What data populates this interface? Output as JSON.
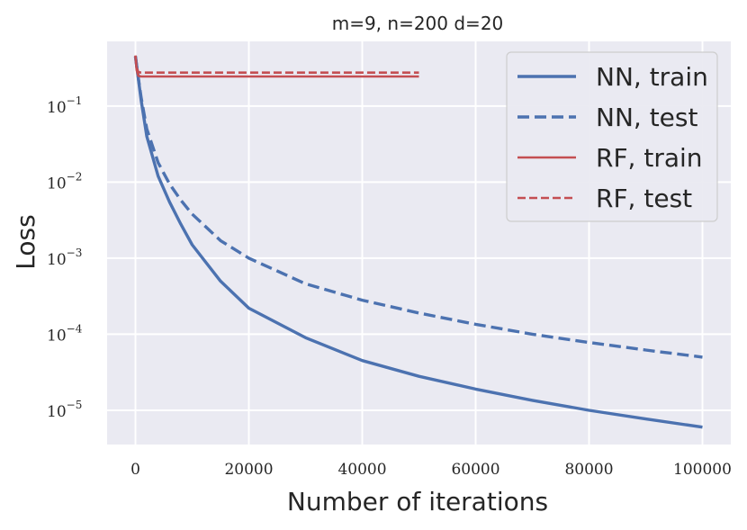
{
  "chart_data": {
    "type": "line",
    "title": "m=9, n=200 d=20",
    "xlabel": "Number of iterations",
    "ylabel": "Loss",
    "xscale": "linear",
    "yscale": "log",
    "xlim": [
      -5000,
      105000
    ],
    "ylim_log10": [
      -5.45,
      -0.15
    ],
    "grid": true,
    "legend_position": "top-right",
    "x_ticks": [
      0,
      20000,
      40000,
      60000,
      80000,
      100000
    ],
    "x_tick_labels": [
      "0",
      "20000",
      "40000",
      "60000",
      "80000",
      "100000"
    ],
    "y_tick_exponents": [
      -1,
      -2,
      -3,
      -4,
      -5
    ],
    "y_tick_labels": [
      {
        "base": "10",
        "exp": "−1"
      },
      {
        "base": "10",
        "exp": "−2"
      },
      {
        "base": "10",
        "exp": "−3"
      },
      {
        "base": "10",
        "exp": "−4"
      },
      {
        "base": "10",
        "exp": "−5"
      }
    ],
    "series": [
      {
        "name": "NN, train",
        "color": "#4c72b0",
        "style": "solid",
        "x": [
          0,
          300,
          1000,
          2000,
          4000,
          6000,
          8000,
          10000,
          15000,
          20000,
          30000,
          40000,
          50000,
          60000,
          70000,
          80000,
          90000,
          100000
        ],
        "values": [
          0.45,
          0.3,
          0.12,
          0.04,
          0.012,
          0.0055,
          0.0028,
          0.0015,
          0.0005,
          0.00022,
          9e-05,
          4.5e-05,
          2.8e-05,
          1.9e-05,
          1.35e-05,
          1e-05,
          7.7e-06,
          6e-06
        ]
      },
      {
        "name": "NN, test",
        "color": "#4c72b0",
        "style": "dashed",
        "x": [
          0,
          300,
          1000,
          2000,
          4000,
          6000,
          8000,
          10000,
          15000,
          20000,
          30000,
          40000,
          50000,
          60000,
          70000,
          80000,
          90000,
          100000
        ],
        "values": [
          0.45,
          0.3,
          0.13,
          0.05,
          0.018,
          0.0095,
          0.0058,
          0.0038,
          0.0017,
          0.001,
          0.00046,
          0.00028,
          0.00019,
          0.000135,
          0.0001,
          7.8e-05,
          6.2e-05,
          5e-05
        ]
      },
      {
        "name": "RF, train",
        "color": "#c44e52",
        "style": "solid",
        "x": [
          0,
          200,
          500,
          1000,
          50000
        ],
        "values": [
          0.46,
          0.3,
          0.25,
          0.245,
          0.245
        ]
      },
      {
        "name": "RF, test",
        "color": "#c44e52",
        "style": "dashed",
        "x": [
          0,
          200,
          500,
          1000,
          50000
        ],
        "values": [
          0.46,
          0.32,
          0.28,
          0.275,
          0.275
        ]
      }
    ]
  }
}
